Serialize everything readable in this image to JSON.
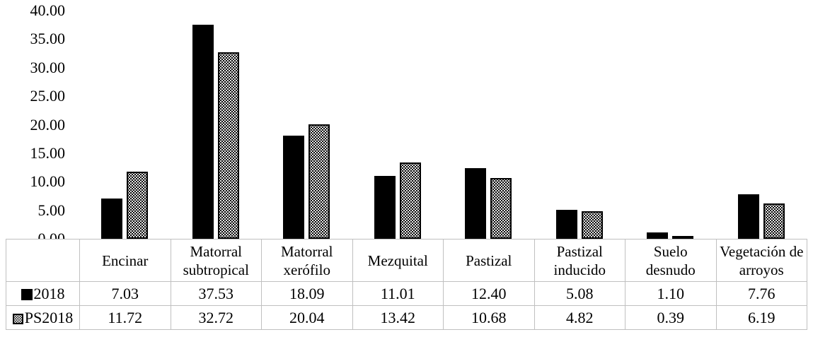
{
  "figure": {
    "background": "#ffffff",
    "table_border_color": "#c0c0c0",
    "series_colors": {
      "2018": "#000000",
      "PS2018": "white-with-black-dot-pattern"
    }
  },
  "chart_data": {
    "type": "bar",
    "title": "",
    "xlabel": "",
    "ylabel": "",
    "categories": [
      "Encinar",
      "Matorral subtropical",
      "Matorral xerófilo",
      "Mezquital",
      "Pastizal",
      "Pastizal inducido",
      "Suelo desnudo",
      "Vegetación de arroyos"
    ],
    "series": [
      {
        "name": "2018",
        "style": "solid-black",
        "values": [
          7.03,
          37.53,
          18.09,
          11.01,
          12.4,
          5.08,
          1.1,
          7.76
        ],
        "display_values": [
          "7.03",
          "37.53",
          "18.09",
          "11.01",
          "12.40",
          "5.08",
          "1.10",
          "7.76"
        ]
      },
      {
        "name": "PS2018",
        "style": "dotted-pattern",
        "values": [
          11.72,
          32.72,
          20.04,
          13.42,
          10.68,
          4.82,
          0.39,
          6.19
        ],
        "display_values": [
          "11.72",
          "32.72",
          "20.04",
          "13.42",
          "10.68",
          "4.82",
          "0.39",
          "6.19"
        ]
      }
    ],
    "ylim": [
      0,
      40
    ],
    "ytick_step": 5,
    "ytick_labels": [
      "0.00",
      "5.00",
      "10.00",
      "15.00",
      "20.00",
      "25.00",
      "30.00",
      "35.00",
      "40.00"
    ],
    "grid": false,
    "legend_position": "table-left-column",
    "legend_labels": [
      "2018",
      "PS2018"
    ]
  }
}
